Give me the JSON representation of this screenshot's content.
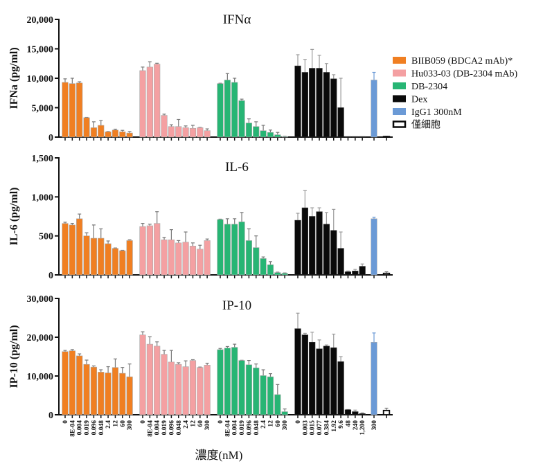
{
  "chart_data": {
    "type": "bar",
    "xlabel": "濃度(nM)",
    "groups": [
      {
        "name": "BIIB059 (BDCA2 mAb)*",
        "color": "#f07f22",
        "x_labels": [
          "0",
          "8E-04",
          "0.004",
          "0.019",
          "0.096",
          "0.048",
          "2.4",
          "12",
          "60",
          "300"
        ]
      },
      {
        "name": "Hu033-03 (DB-2304 mAb)",
        "color": "#f4a0a2",
        "x_labels": [
          "0",
          "8E-04",
          "0.004",
          "0.019",
          "0.096",
          "0.048",
          "2.4",
          "12",
          "60",
          "300"
        ]
      },
      {
        "name": "DB-2304",
        "color": "#27b574",
        "x_labels": [
          "0",
          "8E-04",
          "0.004",
          "0.019",
          "0.096",
          "0.048",
          "2.4",
          "12",
          "60",
          "300"
        ]
      },
      {
        "name": "Dex",
        "color": "#0a0a0a",
        "x_labels": [
          "0",
          "0.003",
          "0.015",
          "0.077",
          "0.384",
          "1.92",
          "9.6",
          "48",
          "240",
          "1,200"
        ]
      },
      {
        "name": "IgG1 300nM",
        "color": "#6b9ad6",
        "x_labels": [
          "300"
        ]
      },
      {
        "name": "僅細胞",
        "color": "#ffffff",
        "outline": "#0a0a0a",
        "x_labels": [
          ""
        ]
      }
    ],
    "legend": {
      "placement": "right",
      "entries": [
        "BIIB059 (BDCA2 mAb)*",
        "Hu033-03 (DB-2304 mAb)",
        "DB-2304",
        "Dex",
        "IgG1 300nM",
        "僅細胞"
      ]
    },
    "panels": [
      {
        "title": "IFNα",
        "ylabel": "IFNa (pg/ml)",
        "ylim": [
          0,
          20000
        ],
        "yticks": [
          0,
          5000,
          10000,
          15000,
          20000
        ],
        "ytick_labels": [
          "0",
          "5,000",
          "10,000",
          "15,000",
          "20,000"
        ],
        "series": [
          {
            "name": "BIIB059 (BDCA2 mAb)*",
            "values": [
              9300,
              9100,
              9200,
              3300,
              1600,
              2000,
              900,
              1200,
              900,
              700
            ],
            "errors": [
              600,
              900,
              200,
              50,
              1000,
              800,
              50,
              150,
              250,
              250
            ]
          },
          {
            "name": "Hu033-03 (DB-2304 mAb)",
            "values": [
              11300,
              11900,
              12400,
              3700,
              1800,
              1800,
              1600,
              1500,
              1600,
              1100
            ],
            "errors": [
              600,
              900,
              150,
              200,
              300,
              1200,
              300,
              500,
              50,
              300
            ]
          },
          {
            "name": "DB-2304",
            "values": [
              9100,
              9700,
              9300,
              6200,
              2400,
              1800,
              1100,
              800,
              400,
              100
            ],
            "errors": [
              50,
              1100,
              700,
              250,
              700,
              800,
              900,
              400,
              400,
              50
            ]
          },
          {
            "name": "Dex",
            "values": [
              12100,
              11000,
              11700,
              11700,
              11000,
              9900,
              5000,
              100,
              100,
              100
            ],
            "errors": [
              1900,
              2200,
              3200,
              2200,
              1500,
              700,
              5000,
              0,
              0,
              0
            ]
          },
          {
            "name": "IgG1 300nM",
            "values": [
              9700
            ],
            "errors": [
              1300
            ]
          },
          {
            "name": "僅細胞",
            "values": [
              100
            ],
            "errors": [
              50
            ]
          }
        ]
      },
      {
        "title": "IL-6",
        "ylabel": "IL-6 (pg/ml)",
        "ylim": [
          0,
          1500
        ],
        "yticks": [
          0,
          500,
          1000,
          1500
        ],
        "ytick_labels": [
          "0",
          "500",
          "1,000",
          "1,500"
        ],
        "series": [
          {
            "name": "BIIB059 (BDCA2 mAb)*",
            "values": [
              660,
              640,
              720,
              500,
              470,
              470,
              400,
              340,
              310,
              440
            ],
            "errors": [
              15,
              20,
              60,
              40,
              170,
              120,
              35,
              5,
              5,
              10
            ]
          },
          {
            "name": "Hu033-03 (DB-2304 mAb)",
            "values": [
              620,
              630,
              660,
              450,
              450,
              410,
              420,
              370,
              330,
              440
            ],
            "errors": [
              40,
              20,
              150,
              30,
              130,
              30,
              130,
              40,
              50,
              20
            ]
          },
          {
            "name": "DB-2304",
            "values": [
              710,
              650,
              650,
              680,
              440,
              350,
              210,
              130,
              30,
              20
            ],
            "errors": [
              5,
              70,
              70,
              120,
              150,
              150,
              20,
              40,
              5,
              5
            ]
          },
          {
            "name": "Dex",
            "values": [
              700,
              860,
              750,
              810,
              650,
              570,
              340,
              40,
              50,
              110
            ],
            "errors": [
              90,
              220,
              110,
              50,
              150,
              270,
              210,
              10,
              20,
              30
            ]
          },
          {
            "name": "IgG1 300nM",
            "values": [
              720
            ],
            "errors": [
              20
            ]
          },
          {
            "name": "僅細胞",
            "values": [
              20
            ],
            "errors": [
              20
            ]
          }
        ]
      },
      {
        "title": "IP-10",
        "ylabel": "IP-10 (pg/ml)",
        "ylim": [
          0,
          30000
        ],
        "yticks": [
          0,
          10000,
          20000,
          30000
        ],
        "ytick_labels": [
          "0",
          "10,000",
          "20,000",
          "30,000"
        ],
        "series": [
          {
            "name": "BIIB059 (BDCA2 mAb)*",
            "values": [
              16300,
              16500,
              15200,
              13000,
              12300,
              11000,
              10800,
              12200,
              10700,
              9800
            ],
            "errors": [
              300,
              300,
              500,
              1100,
              300,
              600,
              1600,
              2200,
              1500,
              3300
            ]
          },
          {
            "name": "Hu033-03 (DB-2304 mAb)",
            "values": [
              20600,
              18200,
              17700,
              15600,
              13600,
              13000,
              12400,
              14000,
              12200,
              12800
            ],
            "errors": [
              800,
              1900,
              1100,
              1000,
              3000,
              400,
              1500,
              200,
              100,
              500
            ]
          },
          {
            "name": "DB-2304",
            "values": [
              16800,
              17200,
              17400,
              14000,
              12900,
              12100,
              10100,
              9800,
              5200,
              800
            ],
            "errors": [
              300,
              400,
              800,
              50,
              1100,
              1000,
              1500,
              800,
              2600,
              700
            ]
          },
          {
            "name": "Dex",
            "values": [
              22200,
              20600,
              18700,
              17000,
              17700,
              17300,
              13700,
              1300,
              800,
              300
            ],
            "errors": [
              4000,
              400,
              2600,
              2300,
              300,
              3500,
              1300,
              50,
              400,
              200
            ]
          },
          {
            "name": "IgG1 300nM",
            "values": [
              18700
            ],
            "errors": [
              2400
            ]
          },
          {
            "name": "僅細胞",
            "values": [
              1100
            ],
            "errors": [
              600
            ]
          }
        ]
      }
    ]
  }
}
